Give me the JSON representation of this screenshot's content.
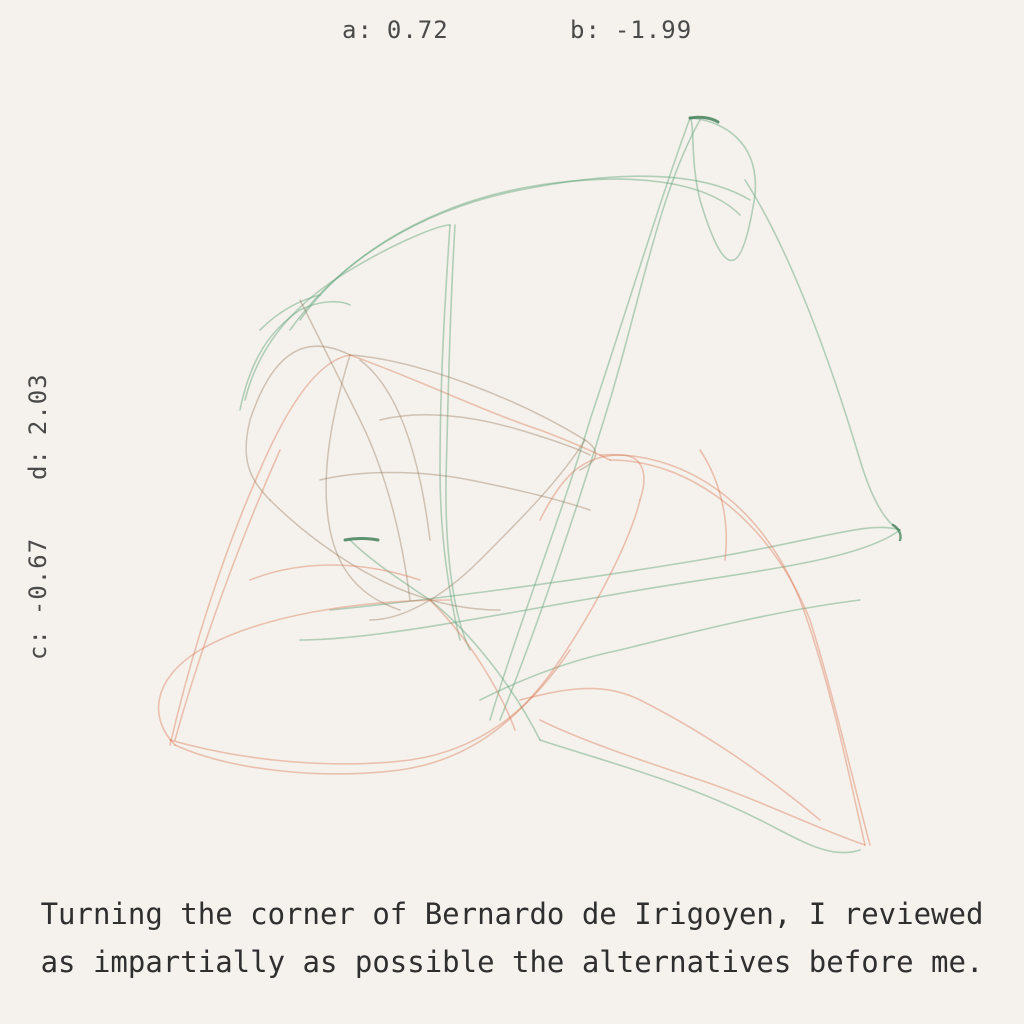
{
  "params": {
    "a": {
      "label": "a:",
      "value": "0.72"
    },
    "b": {
      "label": "b:",
      "value": "-1.99"
    },
    "c": {
      "label": "c:",
      "value": "-0.67"
    },
    "d": {
      "label": "d:",
      "value": "2.03"
    }
  },
  "caption": {
    "line1": "Turning the corner of Bernardo de Irigoyen, I reviewed",
    "line2": "as impartially as possible the alternatives before me."
  },
  "colors": {
    "background": "#f5f1ec",
    "green": "#4f9a6a",
    "orange": "#d9694a",
    "brown": "#7a5a40",
    "text": "#3a3a3a"
  }
}
